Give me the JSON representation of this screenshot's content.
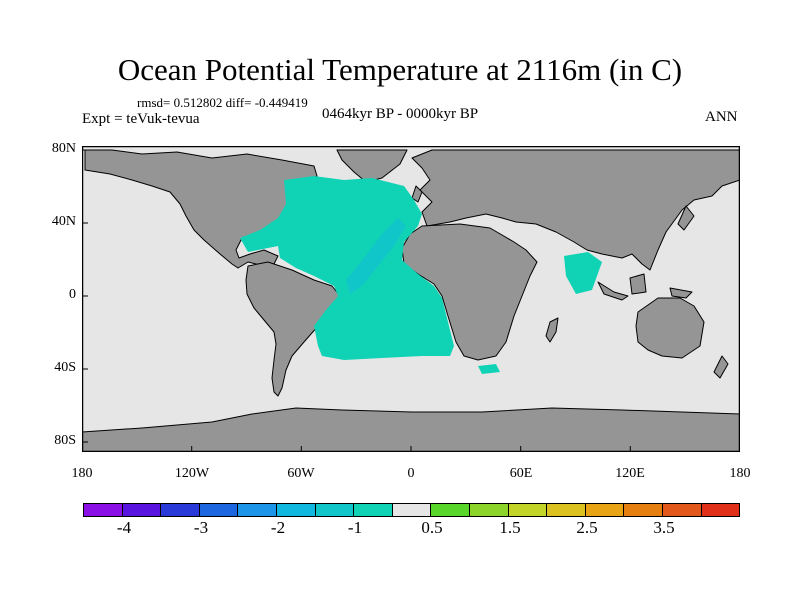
{
  "title": "Ocean Potential Temperature at 2116m (in C)",
  "stats": "rmsd= 0.512802 diff= -0.449419",
  "expt": "Expt = teVuk-tevua",
  "period": "0464kyr BP - 0000kyr BP",
  "season": "ANN",
  "map": {
    "y_ticks": [
      "80N",
      "40N",
      "0",
      "40S",
      "80S"
    ],
    "x_ticks": [
      "180",
      "120W",
      "60W",
      "0",
      "60E",
      "120E",
      "180"
    ],
    "land_color": "#959595",
    "ocean_neutral_color": "#e6e6e6",
    "anomaly_colors": {
      "minus_1_to_minus_0.5": "#10d3b5",
      "minus_1.5_to_minus_1": "#10c6c8"
    }
  },
  "colorbar": {
    "colors": [
      "#8a10e6",
      "#5a14e0",
      "#2a3ad8",
      "#1c67e0",
      "#1c95e8",
      "#10b8e0",
      "#10c6c8",
      "#10d3b5",
      "#e6e6e6",
      "#58d62a",
      "#8cd42a",
      "#c3d428",
      "#dcc220",
      "#e8a414",
      "#e57f10",
      "#e2581a",
      "#e0301a"
    ],
    "labels": [
      "-4",
      "-3",
      "-2",
      "-1",
      "0.5",
      "1.5",
      "2.5",
      "3.5"
    ]
  }
}
